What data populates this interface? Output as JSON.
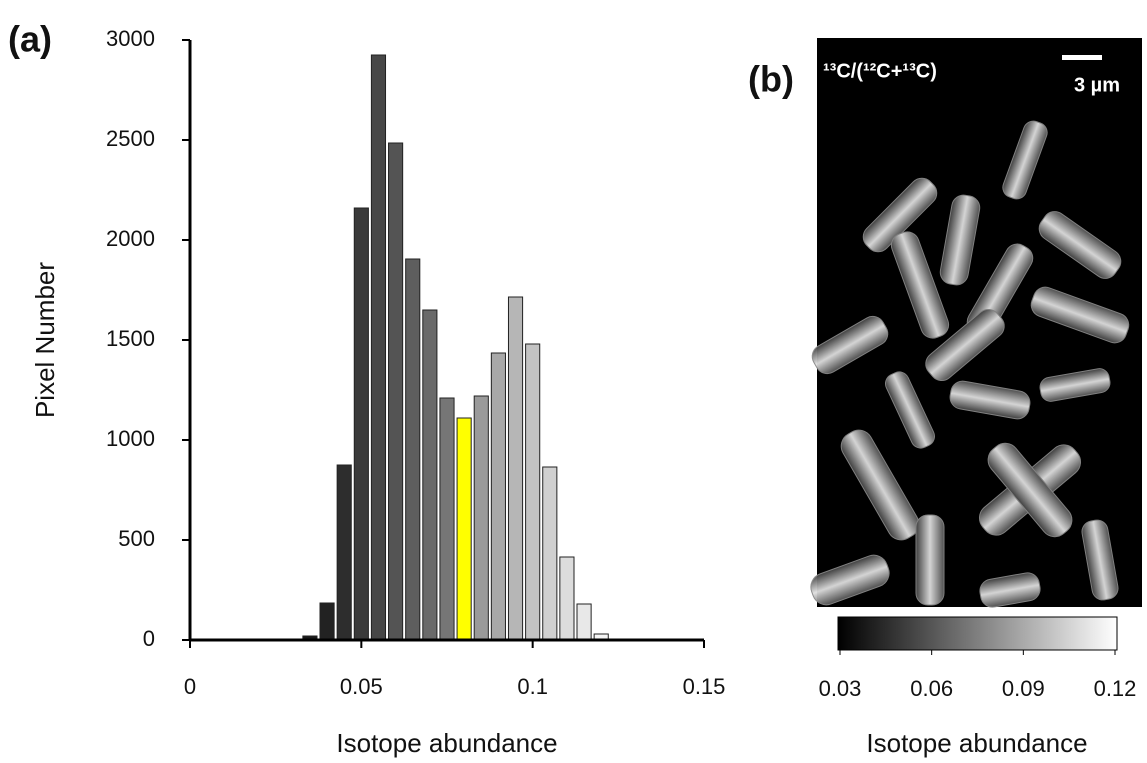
{
  "chart_data": [
    {
      "type": "histogram",
      "panel_label": "(a)",
      "xlabel": "Isotope abundance",
      "ylabel": "Pixel Number",
      "bins": [
        0.0325,
        0.0375,
        0.0425,
        0.0475,
        0.0525,
        0.0575,
        0.0625,
        0.0675,
        0.0725,
        0.0775,
        0.0825,
        0.0875,
        0.0925,
        0.0975,
        0.1025,
        0.1075,
        0.1125,
        0.1175,
        0.1225
      ],
      "values": [
        20,
        185,
        875,
        2160,
        2925,
        2485,
        1905,
        1650,
        1210,
        1110,
        1220,
        1435,
        1715,
        1480,
        865,
        415,
        180,
        30
      ],
      "colors": [
        "#1a1a1a",
        "#222222",
        "#2d2d2d",
        "#3a3a3a",
        "#474747",
        "#545454",
        "#5e5e5e",
        "#6a6a6a",
        "#767676",
        "#ffff00",
        "#9a9a9a",
        "#a8a8a8",
        "#b6b6b6",
        "#c3c3c3",
        "#d0d0d0",
        "#dcdcdc",
        "#e8e8e8",
        "#f5f5f5"
      ],
      "xlim": [
        0,
        0.15
      ],
      "xticks": [
        0,
        0.05,
        0.1,
        0.15
      ],
      "ylim": [
        0,
        3000
      ],
      "yticks": [
        0,
        500,
        1000,
        1500,
        2000,
        2500,
        3000
      ]
    },
    {
      "type": "colorbar",
      "panel_label": "(b)",
      "title": "¹³C/(¹²C+¹³C)",
      "scale_bar": "3 µm",
      "xlabel": "Isotope abundance",
      "xlim": [
        0.03,
        0.12
      ],
      "xticks": [
        0.03,
        0.06,
        0.09,
        0.12
      ]
    }
  ]
}
